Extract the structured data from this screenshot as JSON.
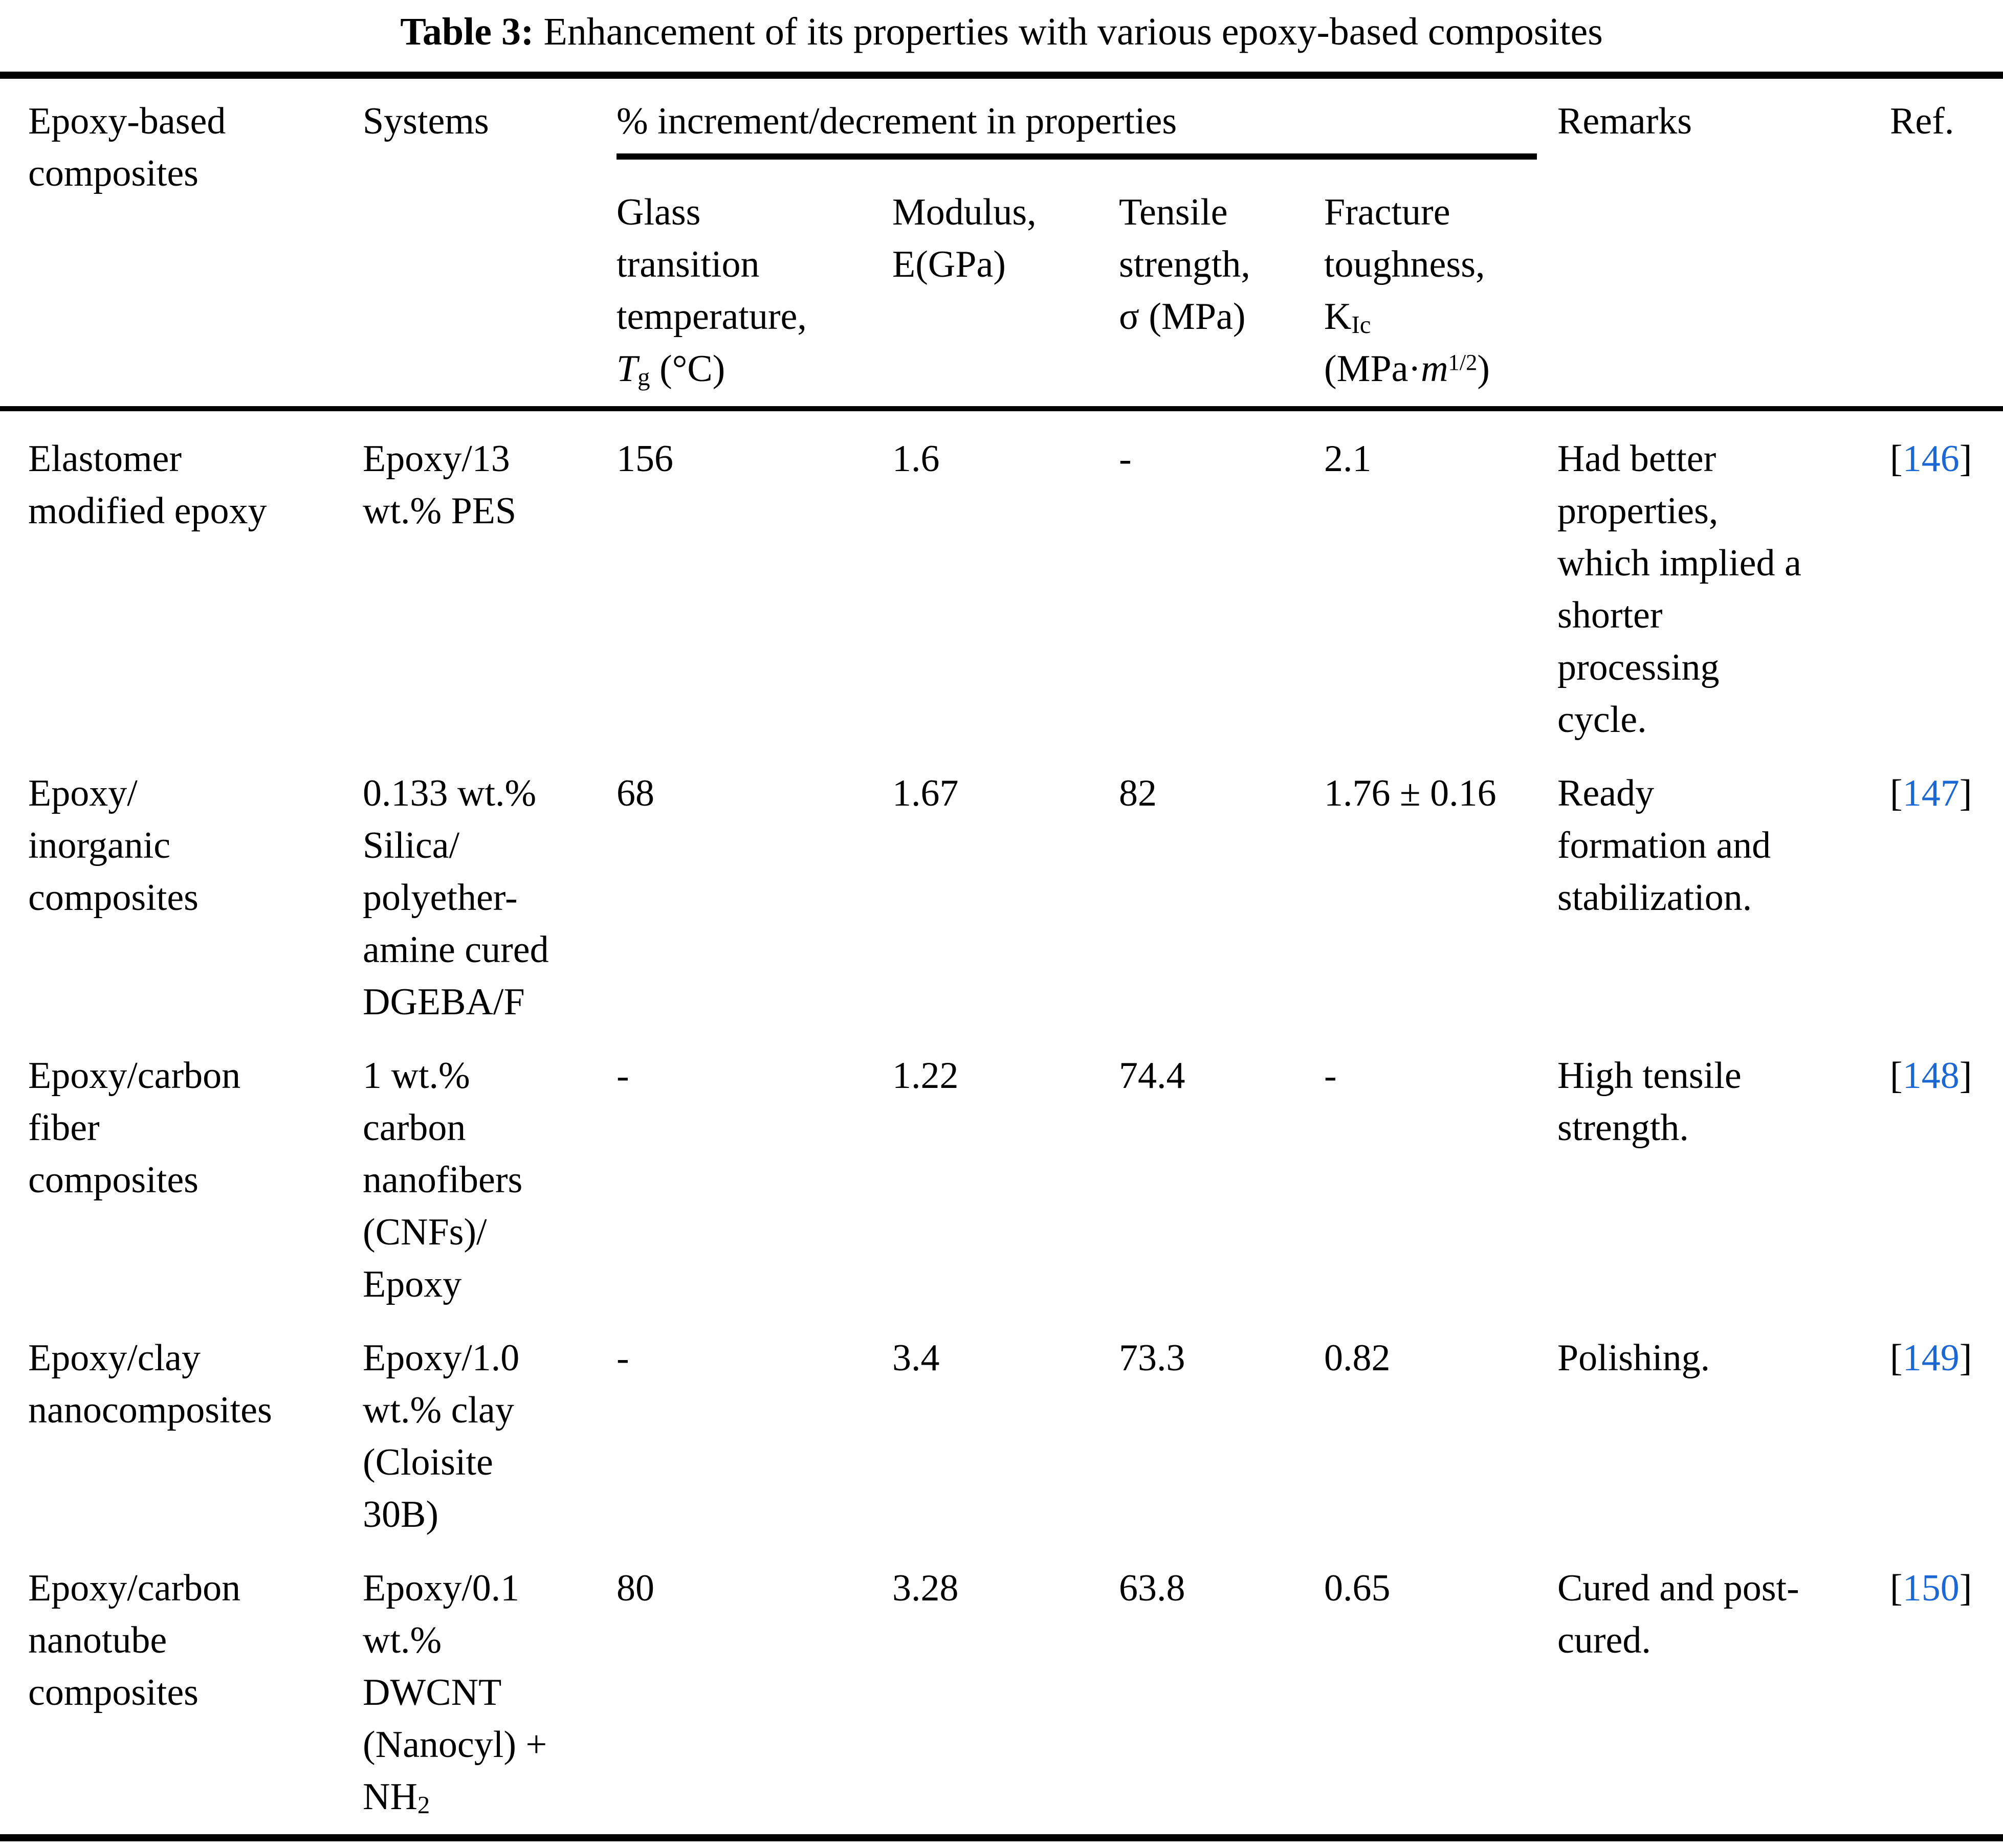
{
  "title": {
    "label": "Table 3:",
    "text": " Enhancement of its properties with various epoxy-based composites"
  },
  "colors": {
    "link_blue": "#1B67D4",
    "text": "#000000",
    "background": "#FFFFFF"
  },
  "refs": {
    "open": "[",
    "close": "]"
  },
  "header": {
    "composites": [
      "Epoxy-based",
      "composites"
    ],
    "systems": "Systems",
    "group": "% increment/decrement in properties",
    "glass": [
      "Glass",
      "transition",
      "temperature,",
      "<i>T</i><sub>g</sub> (°C)"
    ],
    "modulus": [
      "Modulus,",
      "E(GPa)"
    ],
    "tensile": [
      "Tensile",
      "strength,",
      "σ (MPa)"
    ],
    "fracture": [
      "Fracture",
      "toughness,",
      "K<sub>Ic</sub>",
      "(MPa·<i>m</i><sup>1/2</sup>)"
    ],
    "remarks": "Remarks",
    "ref": "Ref."
  },
  "rows": [
    {
      "composite": [
        "Elastomer",
        "modified epoxy"
      ],
      "system": [
        "Epoxy/13",
        "wt.% PES"
      ],
      "glass_transition": "156",
      "modulus": "1.6",
      "tensile_strength": "-",
      "fracture_toughness": "2.1",
      "remarks": [
        "Had better",
        "properties,",
        "which implied a",
        "shorter",
        "processing",
        "cycle."
      ],
      "ref": "146"
    },
    {
      "composite": [
        "Epoxy/",
        "inorganic",
        "composites"
      ],
      "system": [
        "0.133 wt.%",
        "Silica/",
        "polyether-",
        "amine cured",
        "DGEBA/F"
      ],
      "glass_transition": "68",
      "modulus": "1.67",
      "tensile_strength": "82",
      "fracture_toughness": "1.76 ± 0.16",
      "remarks": [
        "Ready",
        "formation and",
        "stabilization."
      ],
      "ref": "147"
    },
    {
      "composite": [
        "Epoxy/carbon",
        "fiber",
        "composites"
      ],
      "system": [
        "1 wt.%",
        "carbon",
        "nanofibers",
        "(CNFs)/",
        "Epoxy"
      ],
      "glass_transition": "-",
      "modulus": "1.22",
      "tensile_strength": "74.4",
      "fracture_toughness": "-",
      "remarks": [
        "High tensile",
        "strength."
      ],
      "ref": "148"
    },
    {
      "composite": [
        "Epoxy/clay",
        "nanocomposites"
      ],
      "system": [
        "Epoxy/1.0",
        "wt.% clay",
        "(Cloisite",
        "30B)"
      ],
      "glass_transition": "-",
      "modulus": "3.4",
      "tensile_strength": "73.3",
      "fracture_toughness": "0.82",
      "remarks": [
        "Polishing."
      ],
      "ref": "149"
    },
    {
      "composite": [
        "Epoxy/carbon",
        "nanotube",
        "composites"
      ],
      "system": [
        "Epoxy/0.1",
        "wt.%",
        "DWCNT",
        "(Nanocyl) +",
        "NH<sub>2</sub>"
      ],
      "glass_transition": "80",
      "modulus": "3.28",
      "tensile_strength": "63.8",
      "fracture_toughness": "0.65",
      "remarks": [
        "Cured and post-",
        "cured."
      ],
      "ref": "150"
    }
  ]
}
